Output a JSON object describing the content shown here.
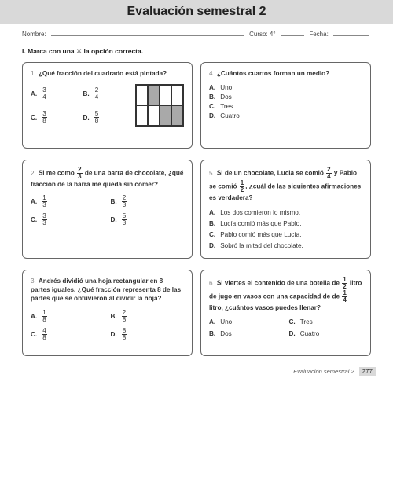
{
  "title": "Evaluación semestral 2",
  "meta": {
    "nombre_label": "Nombre:",
    "curso_label": "Curso: 4°",
    "fecha_label": "Fecha:"
  },
  "instruction": {
    "roman": "I.",
    "pre": "Marca con una",
    "x": "✕",
    "post": "la opción correcta."
  },
  "q1": {
    "num": "1.",
    "text": "¿Qué fracción del cuadrado está pintada?",
    "a": {
      "l": "A.",
      "n": "3",
      "d": "4"
    },
    "b": {
      "l": "B.",
      "n": "2",
      "d": "4"
    },
    "c": {
      "l": "C.",
      "n": "3",
      "d": "8"
    },
    "d": {
      "l": "D.",
      "n": "5",
      "d": "8"
    }
  },
  "q2": {
    "num": "2.",
    "pre": "Si me como",
    "fn": "2",
    "fd": "3",
    "post": "de una barra de chocolate, ¿qué fracción de la barra me queda sin comer?",
    "a": {
      "l": "A.",
      "n": "1",
      "d": "3"
    },
    "b": {
      "l": "B.",
      "n": "2",
      "d": "3"
    },
    "c": {
      "l": "C.",
      "n": "3",
      "d": "3"
    },
    "d": {
      "l": "D.",
      "n": "5",
      "d": "3"
    }
  },
  "q3": {
    "num": "3.",
    "text": "Andrés dividió una hoja rectangular en 8 partes iguales. ¿Qué fracción representa 8 de las partes que se obtuvieron al dividir la hoja?",
    "a": {
      "l": "A.",
      "n": "1",
      "d": "8"
    },
    "b": {
      "l": "B.",
      "n": "2",
      "d": "8"
    },
    "c": {
      "l": "C.",
      "n": "4",
      "d": "8"
    },
    "d": {
      "l": "D.",
      "n": "8",
      "d": "8"
    }
  },
  "q4": {
    "num": "4.",
    "text": "¿Cuántos cuartos forman un medio?",
    "a": {
      "l": "A.",
      "t": "Uno"
    },
    "b": {
      "l": "B.",
      "t": "Dos"
    },
    "c": {
      "l": "C.",
      "t": "Tres"
    },
    "d": {
      "l": "D.",
      "t": "Cuatro"
    }
  },
  "q5": {
    "num": "5.",
    "pre": "Si de un chocolate, Lucia se comió",
    "f1n": "2",
    "f1d": "4",
    "mid": "y Pablo se comió",
    "f2n": "1",
    "f2d": "2",
    "post": ", ¿cuál de las siguientes afirmaciones es verdadera?",
    "a": {
      "l": "A.",
      "t": "Los dos comieron lo mismo."
    },
    "b": {
      "l": "B.",
      "t": "Lucía comió más que Pablo."
    },
    "c": {
      "l": "C.",
      "t": "Pablo comió más que Lucía."
    },
    "d": {
      "l": "D.",
      "t": "Sobró la mitad del chocolate."
    }
  },
  "q6": {
    "num": "6.",
    "pre": "Si viertes el contenido de una botella de",
    "f1n": "1",
    "f1d": "2",
    "mid": "litro de jugo en vasos con una capacidad de de",
    "f2n": "1",
    "f2d": "4",
    "post": "litro, ¿cuántos vasos puedes llenar?",
    "a": {
      "l": "A.",
      "t": "Uno"
    },
    "b": {
      "l": "B.",
      "t": "Dos"
    },
    "c": {
      "l": "C.",
      "t": "Tres"
    },
    "d": {
      "l": "D.",
      "t": "Cuatro"
    }
  },
  "footer": {
    "label": "Evaluación semestral 2",
    "page": "277"
  }
}
